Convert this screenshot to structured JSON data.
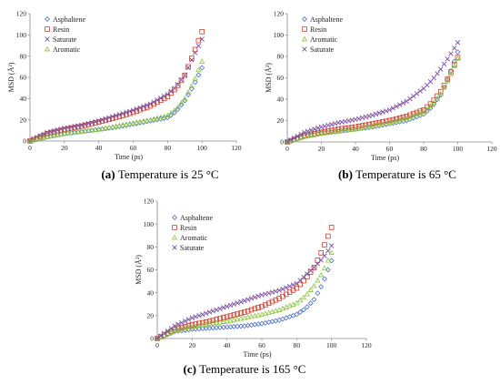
{
  "chart_data": [
    {
      "type": "scatter",
      "caption_label": "(a)",
      "caption_text": "Temperature is 25 °C",
      "xlabel": "Time (ps)",
      "ylabel": "MSD (Å²)",
      "xlim": [
        0,
        120
      ],
      "ylim": [
        0,
        120
      ],
      "xticks": [
        0,
        20,
        40,
        60,
        80,
        100,
        120
      ],
      "yticks": [
        0,
        20,
        40,
        60,
        80,
        100,
        120
      ],
      "legend_position": "top-left",
      "series": [
        {
          "name": "Asphaltene",
          "marker": "diamond",
          "color": "#4a6fc7",
          "x": [
            0,
            10,
            20,
            30,
            40,
            50,
            60,
            70,
            80,
            85,
            90,
            95,
            100
          ],
          "y": [
            0,
            4,
            7,
            9,
            11,
            13,
            16,
            19,
            22,
            28,
            38,
            52,
            69
          ]
        },
        {
          "name": "Resin",
          "marker": "square",
          "color": "#d0402f",
          "x": [
            0,
            10,
            20,
            30,
            40,
            50,
            60,
            70,
            80,
            85,
            90,
            95,
            100
          ],
          "y": [
            0,
            7,
            11,
            14,
            18,
            22,
            27,
            33,
            42,
            50,
            62,
            82,
            103
          ]
        },
        {
          "name": "Saturate",
          "marker": "x",
          "color": "#7a4fa0",
          "x": [
            0,
            10,
            20,
            30,
            40,
            50,
            60,
            70,
            80,
            85,
            90,
            95,
            100
          ],
          "y": [
            0,
            8,
            12,
            15,
            19,
            24,
            29,
            35,
            44,
            51,
            62,
            80,
            96
          ]
        },
        {
          "name": "Aromatic",
          "marker": "triangle",
          "color": "#8cc63f",
          "x": [
            0,
            10,
            20,
            30,
            40,
            50,
            60,
            70,
            80,
            85,
            90,
            95,
            100
          ],
          "y": [
            0,
            4,
            7,
            9,
            11,
            14,
            17,
            20,
            24,
            30,
            40,
            55,
            75
          ]
        }
      ]
    },
    {
      "type": "scatter",
      "caption_label": "(b)",
      "caption_text": "Temperature is 65 °C",
      "xlabel": "Time (ps)",
      "ylabel": "MSD (Å²)",
      "xlim": [
        0,
        120
      ],
      "ylim": [
        0,
        120
      ],
      "xticks": [
        0,
        20,
        40,
        60,
        80,
        100,
        120
      ],
      "yticks": [
        0,
        20,
        40,
        60,
        80,
        100,
        120
      ],
      "legend_position": "top-left",
      "series": [
        {
          "name": "Asphaltene",
          "marker": "diamond",
          "color": "#4a6fc7",
          "x": [
            0,
            10,
            20,
            30,
            40,
            50,
            60,
            70,
            80,
            85,
            90,
            95,
            100
          ],
          "y": [
            0,
            5,
            8,
            10,
            12,
            14,
            17,
            20,
            26,
            33,
            44,
            62,
            84
          ]
        },
        {
          "name": "Resin",
          "marker": "square",
          "color": "#d0402f",
          "x": [
            0,
            10,
            20,
            30,
            40,
            50,
            60,
            70,
            80,
            85,
            90,
            95,
            100
          ],
          "y": [
            0,
            6,
            9,
            12,
            14,
            17,
            20,
            24,
            30,
            37,
            47,
            62,
            79
          ]
        },
        {
          "name": "Aromatic",
          "marker": "triangle",
          "color": "#8cc63f",
          "x": [
            0,
            10,
            20,
            30,
            40,
            50,
            60,
            70,
            80,
            85,
            90,
            95,
            100
          ],
          "y": [
            0,
            5,
            8,
            10,
            12,
            15,
            18,
            22,
            28,
            35,
            45,
            60,
            78
          ]
        },
        {
          "name": "Saturate",
          "marker": "x",
          "color": "#7a4fa0",
          "x": [
            0,
            10,
            20,
            30,
            40,
            50,
            60,
            70,
            80,
            85,
            90,
            95,
            100
          ],
          "y": [
            0,
            9,
            14,
            18,
            21,
            25,
            30,
            38,
            50,
            58,
            68,
            80,
            93
          ]
        }
      ]
    },
    {
      "type": "scatter",
      "caption_label": "(c)",
      "caption_text": "Temperature is 165 °C",
      "xlabel": "Time (ps)",
      "ylabel": "MSD (Å²)",
      "xlim": [
        0,
        120
      ],
      "ylim": [
        0,
        120
      ],
      "xticks": [
        0,
        20,
        40,
        60,
        80,
        100,
        120
      ],
      "yticks": [
        0,
        20,
        40,
        60,
        80,
        100,
        120
      ],
      "legend_position": "top-left",
      "series": [
        {
          "name": "Asphaltene",
          "marker": "diamond",
          "color": "#4a6fc7",
          "x": [
            0,
            10,
            20,
            30,
            40,
            50,
            60,
            70,
            80,
            85,
            90,
            95,
            100
          ],
          "y": [
            0,
            6,
            8,
            9,
            10,
            11,
            13,
            16,
            21,
            26,
            34,
            48,
            68
          ]
        },
        {
          "name": "Resin",
          "marker": "square",
          "color": "#d0402f",
          "x": [
            0,
            10,
            20,
            30,
            40,
            50,
            60,
            70,
            80,
            85,
            90,
            95,
            100
          ],
          "y": [
            0,
            8,
            12,
            15,
            19,
            23,
            28,
            35,
            44,
            52,
            62,
            78,
            97
          ]
        },
        {
          "name": "Aromatic",
          "marker": "triangle",
          "color": "#8cc63f",
          "x": [
            0,
            10,
            20,
            30,
            40,
            50,
            60,
            70,
            80,
            85,
            90,
            95,
            100
          ],
          "y": [
            0,
            7,
            10,
            13,
            15,
            18,
            21,
            25,
            31,
            37,
            46,
            58,
            75
          ]
        },
        {
          "name": "Saturate",
          "marker": "x",
          "color": "#7a4fa0",
          "x": [
            0,
            10,
            20,
            30,
            40,
            50,
            60,
            70,
            80,
            85,
            90,
            95,
            100
          ],
          "y": [
            0,
            11,
            18,
            23,
            28,
            33,
            38,
            42,
            48,
            55,
            62,
            70,
            81
          ]
        }
      ]
    }
  ]
}
